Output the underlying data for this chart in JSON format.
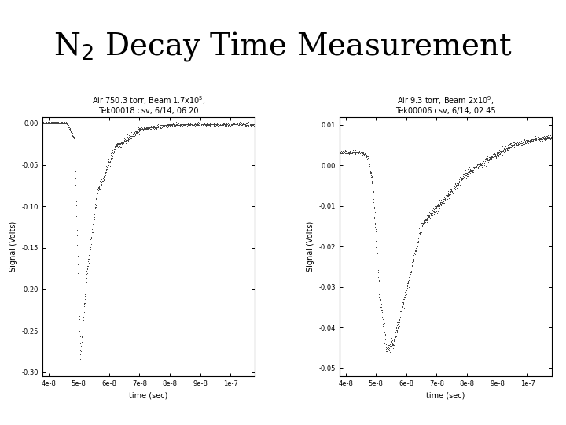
{
  "title_part1": "N",
  "title_sub": "2",
  "title_part2": " Decay Time Measurement",
  "title_fontsize": 28,
  "plot1": {
    "label_line1": "Air 750.3 torr, Beam 1.7x10$^5$,",
    "label_line2": "Tek00018.csv, 6/14, 06.20",
    "xlabel": "time (sec)",
    "ylabel": "Signal (Volts)",
    "xlim": [
      3.8e-08,
      1.08e-07
    ],
    "ylim": [
      -0.305,
      0.008
    ],
    "yticks": [
      0.0,
      -0.05,
      -0.1,
      -0.15,
      -0.2,
      -0.25,
      -0.3
    ],
    "ytick_labels": [
      "0.00",
      "-0.05",
      "-0.10",
      "-0.15",
      "-0.20",
      "-0.25",
      "-0.30"
    ],
    "xticks": [
      4e-08,
      5e-08,
      6e-08,
      7e-08,
      8e-08,
      9e-08,
      1e-07
    ],
    "xtick_labels": [
      "4e-8",
      "5e-8",
      "6e-8",
      "7e-8",
      "8e-8",
      "9e-8",
      "1e-7"
    ]
  },
  "plot2": {
    "label_line1": "Air 9.3 torr, Beam 2x10$^9$,",
    "label_line2": "Tek00006.csv, 6/14, 02.45",
    "xlabel": "time (sec)",
    "ylabel": "Signal (Volts)",
    "xlim": [
      3.8e-08,
      1.08e-07
    ],
    "ylim": [
      -0.052,
      0.012
    ],
    "yticks": [
      0.01,
      0.0,
      -0.01,
      -0.02,
      -0.03,
      -0.04,
      -0.05
    ],
    "ytick_labels": [
      "0.01",
      "0.00",
      "-0.01",
      "-0.02",
      "-0.03",
      "-0.04",
      "-0.05"
    ],
    "xticks": [
      4e-08,
      5e-08,
      6e-08,
      7e-08,
      8e-08,
      9e-08,
      1e-07
    ],
    "xtick_labels": [
      "4e-8",
      "5e-8",
      "6e-8",
      "7e-8",
      "8e-8",
      "9e-8",
      "1e-7"
    ]
  },
  "dot_color": "#444444",
  "dot_size": 1.2,
  "bg_color": "#ffffff",
  "text_color": "#000000",
  "label_fontsize": 7,
  "tick_fontsize": 6,
  "axis_label_fontsize": 7
}
